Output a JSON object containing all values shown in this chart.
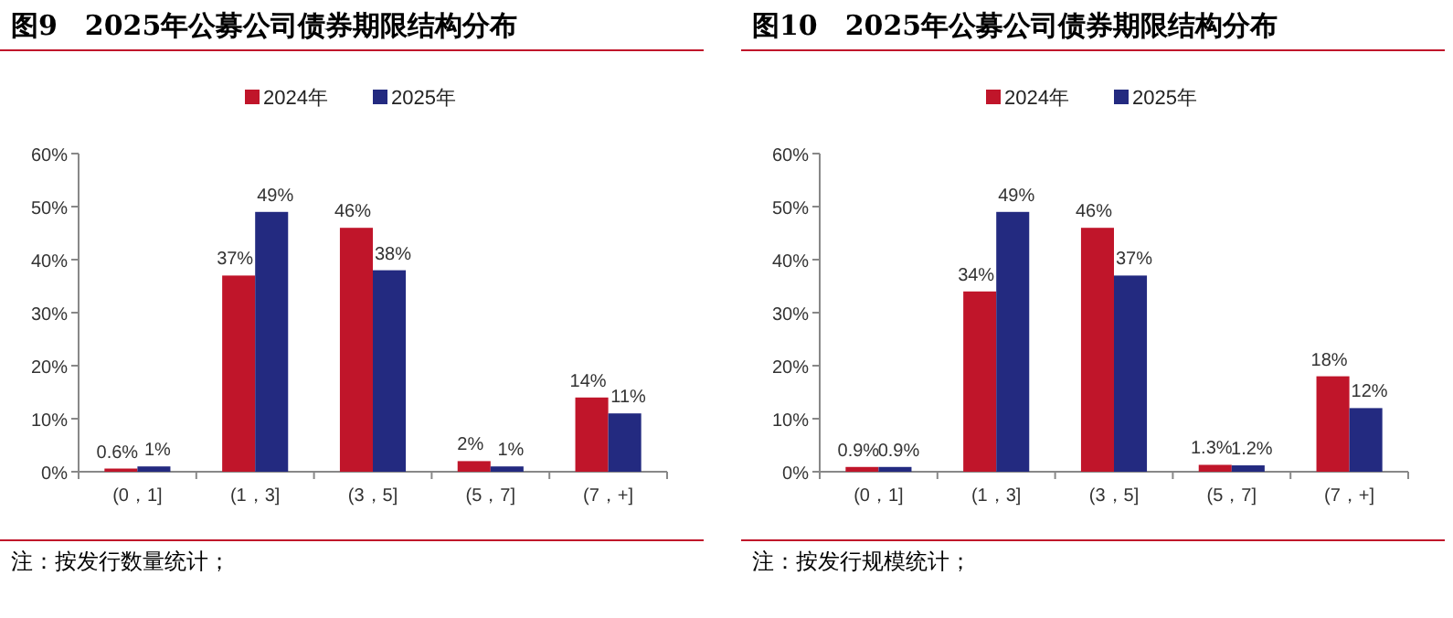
{
  "chart_data": [
    {
      "type": "bar",
      "title": "图9　2025年公募公司债券期限结构分布",
      "categories": [
        "(0，1]",
        "(1，3]",
        "(3，5]",
        "(5，7]",
        "(7，+]"
      ],
      "series": [
        {
          "name": "2024年",
          "color": "#c0152a",
          "values": [
            0.6,
            37,
            46,
            2,
            14
          ],
          "value_labels": [
            "0.6%",
            "37%",
            "46%",
            "2%",
            "14%"
          ]
        },
        {
          "name": "2025年",
          "color": "#232a80",
          "values": [
            1,
            49,
            38,
            1,
            11
          ],
          "value_labels": [
            "1%",
            "49%",
            "38%",
            "1%",
            "11%"
          ]
        }
      ],
      "ylim": [
        0,
        60
      ],
      "yticks": [
        {
          "value": 0,
          "label": "0%"
        },
        {
          "value": 10,
          "label": "10%"
        },
        {
          "value": 20,
          "label": "20%"
        },
        {
          "value": 30,
          "label": "30%"
        },
        {
          "value": 40,
          "label": "40%"
        },
        {
          "value": 50,
          "label": "50%"
        },
        {
          "value": 60,
          "label": "60%"
        }
      ],
      "legend": "top",
      "annotations": [
        "注：按发行数量统计；"
      ]
    },
    {
      "type": "bar",
      "title": "图10　2025年公募公司债券期限结构分布",
      "categories": [
        "(0，1]",
        "(1，3]",
        "(3，5]",
        "(5，7]",
        "(7，+]"
      ],
      "series": [
        {
          "name": "2024年",
          "color": "#c0152a",
          "values": [
            0.9,
            34,
            46,
            1.3,
            18
          ],
          "value_labels": [
            "0.9%",
            "34%",
            "46%",
            "1.3%",
            "18%"
          ]
        },
        {
          "name": "2025年",
          "color": "#232a80",
          "values": [
            0.9,
            49,
            37,
            1.2,
            12
          ],
          "value_labels": [
            "0.9%",
            "49%",
            "37%",
            "1.2%",
            "12%"
          ]
        }
      ],
      "ylim": [
        0,
        60
      ],
      "yticks": [
        {
          "value": 0,
          "label": "0%"
        },
        {
          "value": 10,
          "label": "10%"
        },
        {
          "value": 20,
          "label": "20%"
        },
        {
          "value": 30,
          "label": "30%"
        },
        {
          "value": 40,
          "label": "40%"
        },
        {
          "value": 50,
          "label": "50%"
        },
        {
          "value": 60,
          "label": "60%"
        }
      ],
      "legend": "top",
      "annotations": [
        "注：按发行规模统计；"
      ]
    }
  ]
}
